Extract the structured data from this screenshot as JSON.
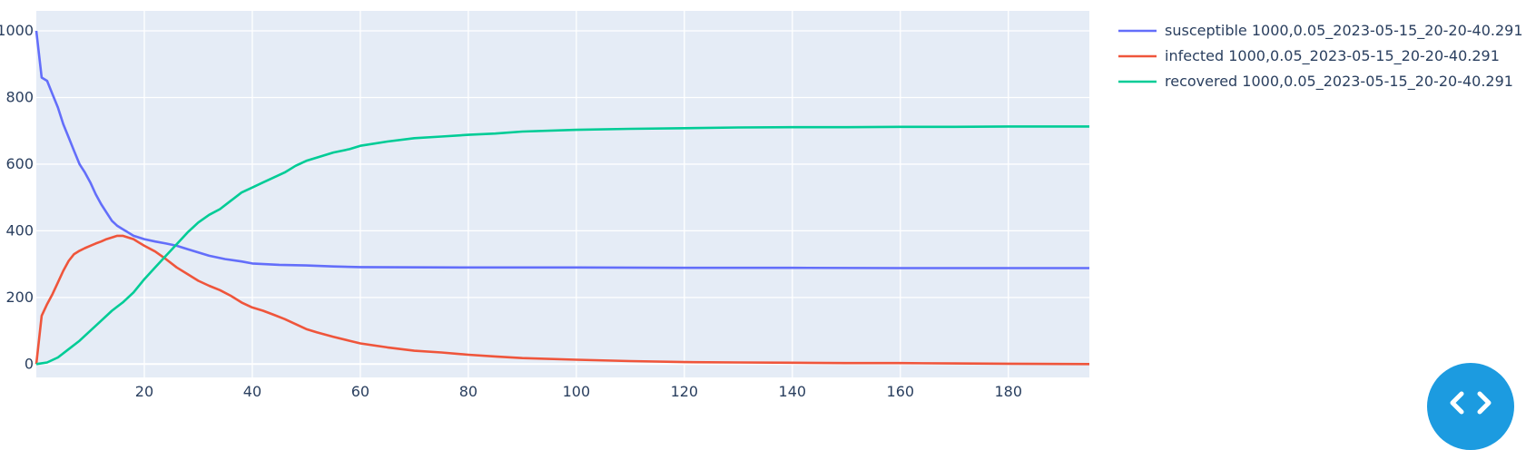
{
  "chart_data": {
    "type": "line",
    "title": "",
    "xlabel": "",
    "ylabel": "",
    "xlim": [
      0,
      195
    ],
    "ylim": [
      -40,
      1060
    ],
    "x_ticks": [
      20,
      40,
      60,
      80,
      100,
      120,
      140,
      160,
      180
    ],
    "y_ticks": [
      0,
      200,
      400,
      600,
      800,
      1000
    ],
    "grid": true,
    "legend_position": "right",
    "series": [
      {
        "name": "susceptible 1000,0.05_2023-05-15_20-20-40.291",
        "color": "#636efa",
        "points": [
          [
            0,
            1000
          ],
          [
            1,
            860
          ],
          [
            2,
            850
          ],
          [
            3,
            810
          ],
          [
            4,
            770
          ],
          [
            5,
            720
          ],
          [
            6,
            680
          ],
          [
            7,
            640
          ],
          [
            8,
            600
          ],
          [
            9,
            575
          ],
          [
            10,
            545
          ],
          [
            11,
            510
          ],
          [
            12,
            480
          ],
          [
            13,
            455
          ],
          [
            14,
            430
          ],
          [
            15,
            415
          ],
          [
            16,
            405
          ],
          [
            17,
            395
          ],
          [
            18,
            385
          ],
          [
            20,
            375
          ],
          [
            22,
            368
          ],
          [
            24,
            362
          ],
          [
            26,
            355
          ],
          [
            28,
            345
          ],
          [
            30,
            335
          ],
          [
            32,
            325
          ],
          [
            35,
            315
          ],
          [
            38,
            308
          ],
          [
            40,
            302
          ],
          [
            45,
            298
          ],
          [
            50,
            296
          ],
          [
            55,
            293
          ],
          [
            60,
            291
          ],
          [
            80,
            290
          ],
          [
            100,
            290
          ],
          [
            120,
            289
          ],
          [
            140,
            289
          ],
          [
            160,
            288
          ],
          [
            180,
            288
          ],
          [
            195,
            288
          ]
        ]
      },
      {
        "name": "infected 1000,0.05_2023-05-15_20-20-40.291",
        "color": "#ef553b",
        "points": [
          [
            0,
            0
          ],
          [
            1,
            145
          ],
          [
            2,
            180
          ],
          [
            3,
            210
          ],
          [
            4,
            245
          ],
          [
            5,
            280
          ],
          [
            6,
            310
          ],
          [
            7,
            330
          ],
          [
            8,
            340
          ],
          [
            9,
            348
          ],
          [
            10,
            355
          ],
          [
            11,
            362
          ],
          [
            12,
            368
          ],
          [
            13,
            375
          ],
          [
            14,
            380
          ],
          [
            15,
            385
          ],
          [
            16,
            385
          ],
          [
            17,
            380
          ],
          [
            18,
            375
          ],
          [
            19,
            365
          ],
          [
            20,
            355
          ],
          [
            22,
            338
          ],
          [
            24,
            315
          ],
          [
            26,
            290
          ],
          [
            28,
            270
          ],
          [
            30,
            250
          ],
          [
            32,
            235
          ],
          [
            34,
            222
          ],
          [
            36,
            205
          ],
          [
            38,
            185
          ],
          [
            40,
            170
          ],
          [
            42,
            160
          ],
          [
            44,
            148
          ],
          [
            46,
            135
          ],
          [
            48,
            120
          ],
          [
            50,
            105
          ],
          [
            52,
            95
          ],
          [
            55,
            82
          ],
          [
            58,
            70
          ],
          [
            60,
            62
          ],
          [
            65,
            50
          ],
          [
            70,
            40
          ],
          [
            75,
            35
          ],
          [
            80,
            28
          ],
          [
            85,
            23
          ],
          [
            90,
            18
          ],
          [
            100,
            13
          ],
          [
            110,
            9
          ],
          [
            120,
            6
          ],
          [
            130,
            5
          ],
          [
            140,
            4
          ],
          [
            150,
            3
          ],
          [
            160,
            3
          ],
          [
            170,
            2
          ],
          [
            180,
            1
          ],
          [
            195,
            0
          ]
        ]
      },
      {
        "name": "recovered 1000,0.05_2023-05-15_20-20-40.291",
        "color": "#00cc96",
        "points": [
          [
            0,
            0
          ],
          [
            2,
            5
          ],
          [
            4,
            20
          ],
          [
            6,
            45
          ],
          [
            8,
            70
          ],
          [
            10,
            100
          ],
          [
            12,
            130
          ],
          [
            14,
            160
          ],
          [
            16,
            185
          ],
          [
            18,
            215
          ],
          [
            20,
            255
          ],
          [
            22,
            290
          ],
          [
            24,
            325
          ],
          [
            26,
            360
          ],
          [
            28,
            395
          ],
          [
            30,
            425
          ],
          [
            32,
            448
          ],
          [
            34,
            465
          ],
          [
            36,
            490
          ],
          [
            38,
            515
          ],
          [
            40,
            530
          ],
          [
            42,
            545
          ],
          [
            44,
            560
          ],
          [
            46,
            575
          ],
          [
            48,
            595
          ],
          [
            50,
            610
          ],
          [
            52,
            620
          ],
          [
            55,
            635
          ],
          [
            58,
            645
          ],
          [
            60,
            655
          ],
          [
            65,
            668
          ],
          [
            70,
            678
          ],
          [
            75,
            683
          ],
          [
            80,
            688
          ],
          [
            85,
            692
          ],
          [
            90,
            698
          ],
          [
            100,
            703
          ],
          [
            110,
            706
          ],
          [
            120,
            708
          ],
          [
            130,
            710
          ],
          [
            140,
            711
          ],
          [
            150,
            711
          ],
          [
            160,
            712
          ],
          [
            170,
            712
          ],
          [
            180,
            713
          ],
          [
            195,
            713
          ]
        ]
      }
    ]
  },
  "icons": {
    "fab": "expand-icon",
    "fab_color": "#1c9be0"
  }
}
